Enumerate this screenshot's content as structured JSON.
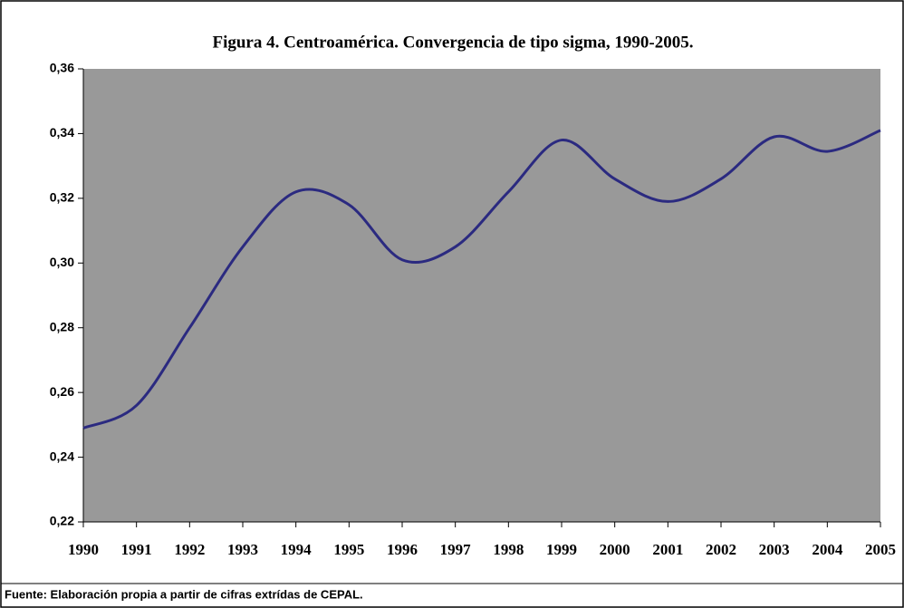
{
  "chart_data": {
    "type": "line",
    "title": "Figura 4. Centroamérica. Convergencia de tipo sigma, 1990-2005.",
    "note": "Fuente: Elaboración propia a partir de cifras extrídas de CEPAL.",
    "categories": [
      "1990",
      "1991",
      "1992",
      "1993",
      "1994",
      "1995",
      "1996",
      "1997",
      "1998",
      "1999",
      "2000",
      "2001",
      "2002",
      "2003",
      "2004",
      "2005"
    ],
    "values": [
      0.249,
      0.256,
      0.28,
      0.305,
      0.322,
      0.318,
      0.301,
      0.305,
      0.322,
      0.338,
      0.326,
      0.319,
      0.326,
      0.339,
      0.3345,
      0.341
    ],
    "color": "#2b2a80",
    "plot_background": "#999999",
    "ylim": [
      0.22,
      0.36
    ],
    "yticks": [
      {
        "value": 0.22,
        "label": "0,22"
      },
      {
        "value": 0.24,
        "label": "0,24"
      },
      {
        "value": 0.26,
        "label": "0,26"
      },
      {
        "value": 0.28,
        "label": "0,28"
      },
      {
        "value": 0.3,
        "label": "0,30"
      },
      {
        "value": 0.32,
        "label": "0,32"
      },
      {
        "value": 0.34,
        "label": "0,34"
      },
      {
        "value": 0.36,
        "label": "0,36"
      }
    ]
  }
}
